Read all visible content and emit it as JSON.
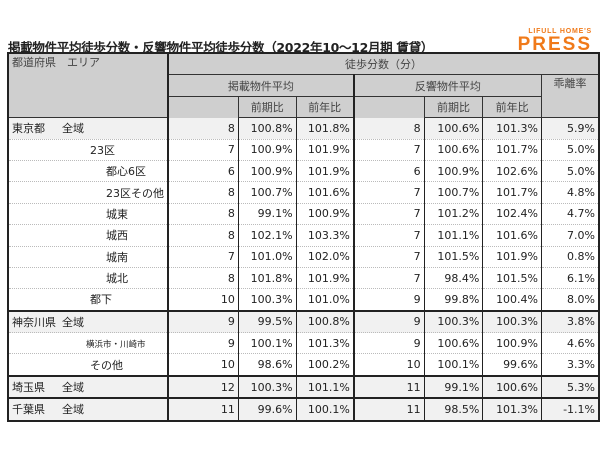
{
  "title": "掲載物件平均徒歩分数・反響物件平均徒歩分数（2022年10～12月期 賃貸）",
  "logo": {
    "top": "LIFULL HOME'S",
    "bottom": "PRESS",
    "color": "#f07a1a"
  },
  "header": {
    "pref": "都道府県",
    "area": "エリア",
    "walk": "徒歩分数（分）",
    "listed": "掲載物件平均",
    "response": "反響物件平均",
    "qoq": "前期比",
    "yoy": "前年比",
    "gap": "乖離率"
  },
  "rows": [
    {
      "pref": "東京都",
      "area": "全域",
      "l": "8",
      "lq": "100.8%",
      "ly": "101.8%",
      "r": "8",
      "rq": "100.6%",
      "ry": "101.3%",
      "gap": "5.9%"
    },
    {
      "pref": "",
      "area": "23区",
      "l": "7",
      "lq": "100.9%",
      "ly": "101.9%",
      "r": "7",
      "rq": "100.6%",
      "ry": "101.7%",
      "gap": "5.0%"
    },
    {
      "pref": "",
      "area": "都心6区",
      "l": "6",
      "lq": "100.9%",
      "ly": "101.9%",
      "r": "6",
      "rq": "100.9%",
      "ry": "102.6%",
      "gap": "5.0%"
    },
    {
      "pref": "",
      "area": "23区その他",
      "l": "8",
      "lq": "100.7%",
      "ly": "101.6%",
      "r": "7",
      "rq": "100.7%",
      "ry": "101.7%",
      "gap": "4.8%"
    },
    {
      "pref": "",
      "area": "城東",
      "l": "8",
      "lq": "99.1%",
      "ly": "100.9%",
      "r": "7",
      "rq": "101.2%",
      "ry": "102.4%",
      "gap": "4.7%"
    },
    {
      "pref": "",
      "area": "城西",
      "l": "8",
      "lq": "102.1%",
      "ly": "103.3%",
      "r": "7",
      "rq": "101.1%",
      "ry": "101.6%",
      "gap": "7.0%"
    },
    {
      "pref": "",
      "area": "城南",
      "l": "7",
      "lq": "101.0%",
      "ly": "102.0%",
      "r": "7",
      "rq": "101.5%",
      "ry": "101.9%",
      "gap": "0.8%"
    },
    {
      "pref": "",
      "area": "城北",
      "l": "8",
      "lq": "101.8%",
      "ly": "101.9%",
      "r": "7",
      "rq": "98.4%",
      "ry": "101.5%",
      "gap": "6.1%"
    },
    {
      "pref": "",
      "area": "都下",
      "l": "10",
      "lq": "100.3%",
      "ly": "101.0%",
      "r": "9",
      "rq": "99.8%",
      "ry": "100.4%",
      "gap": "8.0%"
    },
    {
      "pref": "神奈川県",
      "area": "全域",
      "l": "9",
      "lq": "99.5%",
      "ly": "100.8%",
      "r": "9",
      "rq": "100.3%",
      "ry": "100.3%",
      "gap": "3.8%"
    },
    {
      "pref": "",
      "area": "横浜市・川崎市",
      "l": "9",
      "lq": "100.1%",
      "ly": "101.3%",
      "r": "9",
      "rq": "100.6%",
      "ry": "100.9%",
      "gap": "4.6%"
    },
    {
      "pref": "",
      "area": "その他",
      "l": "10",
      "lq": "98.6%",
      "ly": "100.2%",
      "r": "10",
      "rq": "100.1%",
      "ry": "99.6%",
      "gap": "3.3%"
    },
    {
      "pref": "埼玉県",
      "area": "全域",
      "l": "12",
      "lq": "100.3%",
      "ly": "101.1%",
      "r": "11",
      "rq": "99.1%",
      "ry": "100.6%",
      "gap": "5.3%"
    },
    {
      "pref": "千葉県",
      "area": "全域",
      "l": "11",
      "lq": "99.6%",
      "ly": "100.1%",
      "r": "11",
      "rq": "98.5%",
      "ry": "101.3%",
      "gap": "-1.1%"
    }
  ]
}
